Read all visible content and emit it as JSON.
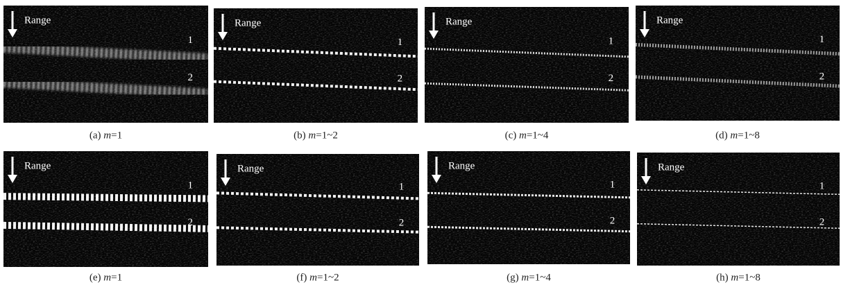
{
  "panels": [
    {
      "range_label": "Range",
      "target_labels": [
        "1",
        "2"
      ],
      "caption": {
        "label": "(a)",
        "variable": "m",
        "value": "=1"
      }
    },
    {
      "range_label": "Range",
      "target_labels": [
        "1",
        "2"
      ],
      "caption": {
        "label": "(b)",
        "variable": "m",
        "value": "=1~2"
      }
    },
    {
      "range_label": "Range",
      "target_labels": [
        "1",
        "2"
      ],
      "caption": {
        "label": "(c)",
        "variable": "m",
        "value": "=1~4"
      }
    },
    {
      "range_label": "Range",
      "target_labels": [
        "1",
        "2"
      ],
      "caption": {
        "label": "(d)",
        "variable": "m",
        "value": "=1~8"
      }
    },
    {
      "range_label": "Range",
      "target_labels": [
        "1",
        "2"
      ],
      "caption": {
        "label": "(e)",
        "variable": "m",
        "value": "=1"
      }
    },
    {
      "range_label": "Range",
      "target_labels": [
        "1",
        "2"
      ],
      "caption": {
        "label": "(f)",
        "variable": "m",
        "value": "=1~2"
      }
    },
    {
      "range_label": "Range",
      "target_labels": [
        "1",
        "2"
      ],
      "caption": {
        "label": "(g)",
        "variable": "m",
        "value": "=1~4"
      }
    },
    {
      "range_label": "Range",
      "target_labels": [
        "1",
        "2"
      ],
      "caption": {
        "label": "(h)",
        "variable": "m",
        "value": "=1~8"
      }
    }
  ]
}
